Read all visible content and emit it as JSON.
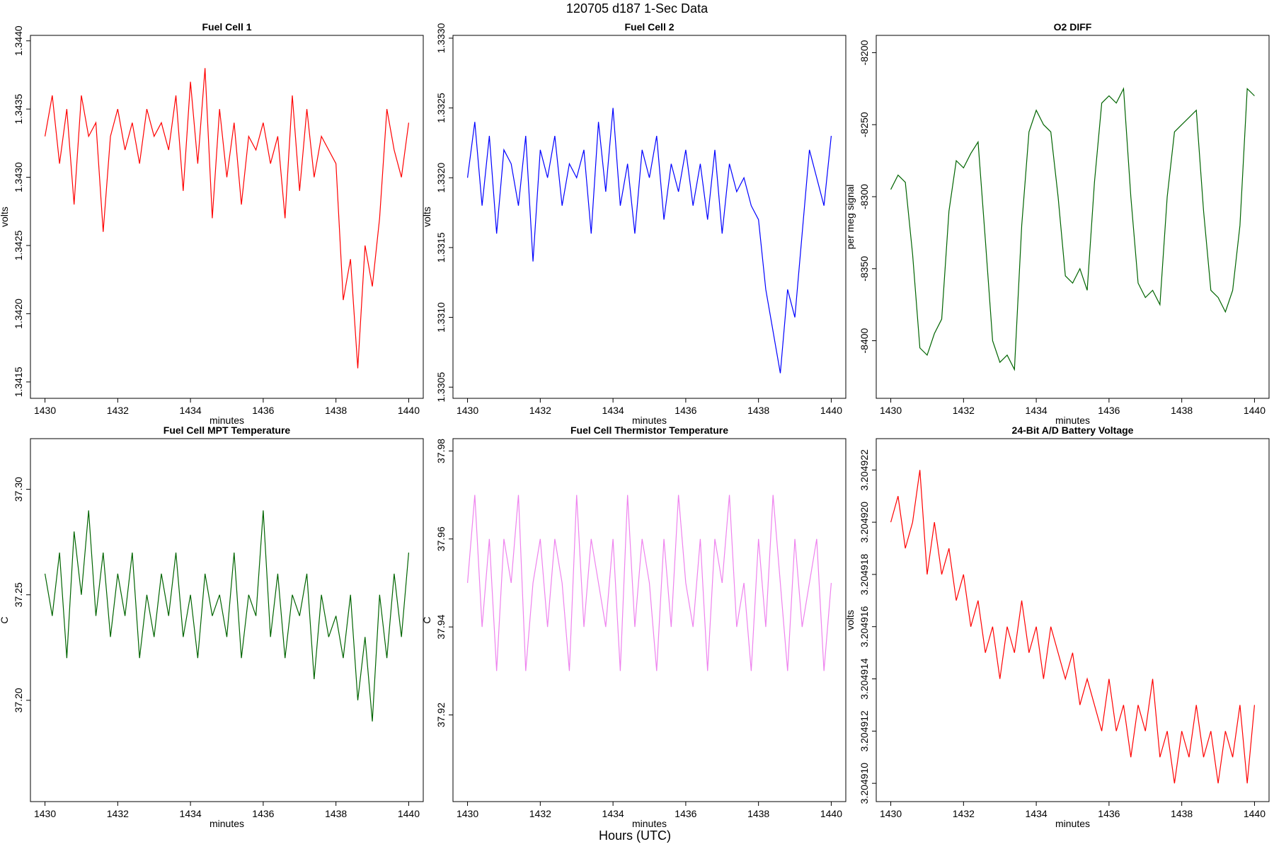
{
  "title": "120705   d187   1-Sec Data",
  "xlabel": "Hours (UTC)",
  "chart_data": [
    {
      "type": "line",
      "title": "Fuel Cell 1",
      "xlabel": "minutes",
      "ylabel": "volts",
      "color": "#ff0000",
      "x": [
        1430,
        1430.2,
        1430.4,
        1430.6,
        1430.8,
        1431,
        1431.2,
        1431.4,
        1431.6,
        1431.8,
        1432,
        1432.2,
        1432.4,
        1432.6,
        1432.8,
        1433,
        1433.2,
        1433.4,
        1433.6,
        1433.8,
        1434,
        1434.2,
        1434.4,
        1434.6,
        1434.8,
        1435,
        1435.2,
        1435.4,
        1435.6,
        1435.8,
        1436,
        1436.2,
        1436.4,
        1436.6,
        1436.8,
        1437,
        1437.2,
        1437.4,
        1437.6,
        1437.8,
        1438,
        1438.2,
        1438.4,
        1438.6,
        1438.8,
        1439,
        1439.2,
        1439.4,
        1439.6,
        1439.8,
        1440
      ],
      "values": [
        1.3433,
        1.3436,
        1.3431,
        1.3435,
        1.3428,
        1.3436,
        1.3433,
        1.3434,
        1.3426,
        1.3433,
        1.3435,
        1.3432,
        1.3434,
        1.3431,
        1.3435,
        1.3433,
        1.3434,
        1.3432,
        1.3436,
        1.3429,
        1.3437,
        1.3431,
        1.3438,
        1.3427,
        1.3435,
        1.343,
        1.3434,
        1.3428,
        1.3433,
        1.3432,
        1.3434,
        1.3431,
        1.3433,
        1.3427,
        1.3436,
        1.3429,
        1.3435,
        1.343,
        1.3433,
        1.3432,
        1.3431,
        1.3421,
        1.3424,
        1.3416,
        1.3425,
        1.3422,
        1.3427,
        1.3435,
        1.3432,
        1.343,
        1.3434
      ],
      "xlim": [
        1429.6,
        1440.4
      ],
      "xticks": [
        1430,
        1432,
        1434,
        1436,
        1438,
        1440
      ],
      "ylim": [
        1.34138,
        1.34404
      ],
      "yticks": [
        1.3415,
        {
          "value": 1.342,
          "label": "1.3420"
        },
        1.3425,
        {
          "value": 1.343,
          "label": "1.3430"
        },
        1.3435,
        {
          "value": 1.344,
          "label": "1.3440"
        }
      ]
    },
    {
      "type": "line",
      "title": "Fuel Cell 2",
      "xlabel": "minutes",
      "ylabel": "volts",
      "color": "#0000ff",
      "x": [
        1430,
        1430.2,
        1430.4,
        1430.6,
        1430.8,
        1431,
        1431.2,
        1431.4,
        1431.6,
        1431.8,
        1432,
        1432.2,
        1432.4,
        1432.6,
        1432.8,
        1433,
        1433.2,
        1433.4,
        1433.6,
        1433.8,
        1434,
        1434.2,
        1434.4,
        1434.6,
        1434.8,
        1435,
        1435.2,
        1435.4,
        1435.6,
        1435.8,
        1436,
        1436.2,
        1436.4,
        1436.6,
        1436.8,
        1437,
        1437.2,
        1437.4,
        1437.6,
        1437.8,
        1438,
        1438.2,
        1438.4,
        1438.6,
        1438.8,
        1439,
        1439.2,
        1439.4,
        1439.6,
        1439.8,
        1440
      ],
      "values": [
        1.332,
        1.3324,
        1.3318,
        1.3323,
        1.3316,
        1.3322,
        1.3321,
        1.3318,
        1.3323,
        1.3314,
        1.3322,
        1.332,
        1.3323,
        1.3318,
        1.3321,
        1.332,
        1.3322,
        1.3316,
        1.3324,
        1.3319,
        1.3325,
        1.3318,
        1.3321,
        1.3316,
        1.3322,
        1.332,
        1.3323,
        1.3317,
        1.3321,
        1.3319,
        1.3322,
        1.3318,
        1.3321,
        1.3317,
        1.3322,
        1.3316,
        1.3321,
        1.3319,
        1.332,
        1.3318,
        1.3317,
        1.3312,
        1.3309,
        1.3306,
        1.3312,
        1.331,
        1.3316,
        1.3322,
        1.332,
        1.3318,
        1.3323
      ],
      "xlim": [
        1429.6,
        1440.4
      ],
      "xticks": [
        1430,
        1432,
        1434,
        1436,
        1438,
        1440
      ],
      "ylim": [
        1.33042,
        1.33302
      ],
      "yticks": [
        1.3305,
        {
          "value": 1.331,
          "label": "1.3310"
        },
        1.3315,
        {
          "value": 1.332,
          "label": "1.3320"
        },
        1.3325,
        {
          "value": 1.333,
          "label": "1.3330"
        }
      ]
    },
    {
      "type": "line",
      "title": "O2 DIFF",
      "xlabel": "minutes",
      "ylabel": "per meg signal",
      "color": "#006400",
      "x": [
        1430,
        1430.2,
        1430.4,
        1430.6,
        1430.8,
        1431,
        1431.2,
        1431.4,
        1431.6,
        1431.8,
        1432,
        1432.2,
        1432.4,
        1432.6,
        1432.8,
        1433,
        1433.2,
        1433.4,
        1433.6,
        1433.8,
        1434,
        1434.2,
        1434.4,
        1434.6,
        1434.8,
        1435,
        1435.2,
        1435.4,
        1435.6,
        1435.8,
        1436,
        1436.2,
        1436.4,
        1436.6,
        1436.8,
        1437,
        1437.2,
        1437.4,
        1437.6,
        1437.8,
        1438,
        1438.2,
        1438.4,
        1438.6,
        1438.8,
        1439,
        1439.2,
        1439.4,
        1439.6,
        1439.8,
        1440
      ],
      "values": [
        -8295,
        -8285,
        -8290,
        -8340,
        -8405,
        -8410,
        -8395,
        -8385,
        -8310,
        -8275,
        -8280,
        -8270,
        -8262,
        -8330,
        -8400,
        -8415,
        -8410,
        -8420,
        -8320,
        -8255,
        -8240,
        -8250,
        -8255,
        -8300,
        -8355,
        -8360,
        -8350,
        -8365,
        -8290,
        -8235,
        -8230,
        -8235,
        -8225,
        -8300,
        -8360,
        -8370,
        -8365,
        -8375,
        -8300,
        -8255,
        -8250,
        -8245,
        -8240,
        -8310,
        -8365,
        -8370,
        -8380,
        -8365,
        -8320,
        -8225,
        -8230
      ],
      "xlim": [
        1429.6,
        1440.4
      ],
      "xticks": [
        1430,
        1432,
        1434,
        1436,
        1438,
        1440
      ],
      "ylim": [
        -8440,
        -8188
      ],
      "yticks": [
        -8400,
        -8350,
        -8300,
        -8250,
        -8200
      ]
    },
    {
      "type": "line",
      "title": "Fuel Cell MPT Temperature",
      "xlabel": "minutes",
      "ylabel": "C",
      "color": "#006400",
      "x": [
        1430,
        1430.2,
        1430.4,
        1430.6,
        1430.8,
        1431,
        1431.2,
        1431.4,
        1431.6,
        1431.8,
        1432,
        1432.2,
        1432.4,
        1432.6,
        1432.8,
        1433,
        1433.2,
        1433.4,
        1433.6,
        1433.8,
        1434,
        1434.2,
        1434.4,
        1434.6,
        1434.8,
        1435,
        1435.2,
        1435.4,
        1435.6,
        1435.8,
        1436,
        1436.2,
        1436.4,
        1436.6,
        1436.8,
        1437,
        1437.2,
        1437.4,
        1437.6,
        1437.8,
        1438,
        1438.2,
        1438.4,
        1438.6,
        1438.8,
        1439,
        1439.2,
        1439.4,
        1439.6,
        1439.8,
        1440
      ],
      "values": [
        37.26,
        37.24,
        37.27,
        37.22,
        37.28,
        37.25,
        37.29,
        37.24,
        37.27,
        37.23,
        37.26,
        37.24,
        37.27,
        37.22,
        37.25,
        37.23,
        37.26,
        37.24,
        37.27,
        37.23,
        37.25,
        37.22,
        37.26,
        37.24,
        37.25,
        37.23,
        37.27,
        37.22,
        37.25,
        37.24,
        37.29,
        37.23,
        37.26,
        37.22,
        37.25,
        37.24,
        37.26,
        37.21,
        37.25,
        37.23,
        37.24,
        37.22,
        37.25,
        37.2,
        37.23,
        37.19,
        37.25,
        37.22,
        37.26,
        37.23,
        37.27
      ],
      "xlim": [
        1429.6,
        1440.4
      ],
      "xticks": [
        1430,
        1432,
        1434,
        1436,
        1438,
        1440
      ],
      "ylim": [
        37.152,
        37.324
      ],
      "yticks": [
        {
          "value": 37.2,
          "label": "37.20"
        },
        37.25,
        {
          "value": 37.3,
          "label": "37.30"
        }
      ]
    },
    {
      "type": "line",
      "title": "Fuel Cell Thermistor Temperature",
      "xlabel": "minutes",
      "ylabel": "C",
      "color": "#ee82ee",
      "x": [
        1430,
        1430.2,
        1430.4,
        1430.6,
        1430.8,
        1431,
        1431.2,
        1431.4,
        1431.6,
        1431.8,
        1432,
        1432.2,
        1432.4,
        1432.6,
        1432.8,
        1433,
        1433.2,
        1433.4,
        1433.6,
        1433.8,
        1434,
        1434.2,
        1434.4,
        1434.6,
        1434.8,
        1435,
        1435.2,
        1435.4,
        1435.6,
        1435.8,
        1436,
        1436.2,
        1436.4,
        1436.6,
        1436.8,
        1437,
        1437.2,
        1437.4,
        1437.6,
        1437.8,
        1438,
        1438.2,
        1438.4,
        1438.6,
        1438.8,
        1439,
        1439.2,
        1439.4,
        1439.6,
        1439.8,
        1440
      ],
      "values": [
        37.95,
        37.97,
        37.94,
        37.96,
        37.93,
        37.96,
        37.95,
        37.97,
        37.93,
        37.95,
        37.96,
        37.94,
        37.96,
        37.95,
        37.93,
        37.97,
        37.94,
        37.96,
        37.95,
        37.94,
        37.96,
        37.93,
        37.97,
        37.94,
        37.96,
        37.95,
        37.93,
        37.96,
        37.94,
        37.97,
        37.95,
        37.94,
        37.96,
        37.93,
        37.96,
        37.95,
        37.97,
        37.94,
        37.95,
        37.93,
        37.96,
        37.94,
        37.97,
        37.95,
        37.93,
        37.96,
        37.94,
        37.95,
        37.96,
        37.93,
        37.95
      ],
      "xlim": [
        1429.6,
        1440.4
      ],
      "xticks": [
        1430,
        1432,
        1434,
        1436,
        1438,
        1440
      ],
      "ylim": [
        37.9003,
        37.9828
      ],
      "yticks": [
        37.92,
        37.94,
        37.96,
        37.98
      ]
    },
    {
      "type": "line",
      "title": "24-Bit A/D Battery Voltage",
      "xlabel": "minutes",
      "ylabel": "volts",
      "color": "#ff0000",
      "x": [
        1430,
        1430.2,
        1430.4,
        1430.6,
        1430.8,
        1431,
        1431.2,
        1431.4,
        1431.6,
        1431.8,
        1432,
        1432.2,
        1432.4,
        1432.6,
        1432.8,
        1433,
        1433.2,
        1433.4,
        1433.6,
        1433.8,
        1434,
        1434.2,
        1434.4,
        1434.6,
        1434.8,
        1435,
        1435.2,
        1435.4,
        1435.6,
        1435.8,
        1436,
        1436.2,
        1436.4,
        1436.6,
        1436.8,
        1437,
        1437.2,
        1437.4,
        1437.6,
        1437.8,
        1438,
        1438.2,
        1438.4,
        1438.6,
        1438.8,
        1439,
        1439.2,
        1439.4,
        1439.6,
        1439.8,
        1440
      ],
      "values": [
        3.20492,
        3.204921,
        3.204919,
        3.20492,
        3.204922,
        3.204918,
        3.20492,
        3.204918,
        3.204919,
        3.204917,
        3.204918,
        3.204916,
        3.204917,
        3.204915,
        3.204916,
        3.204914,
        3.204916,
        3.204915,
        3.204917,
        3.204915,
        3.204916,
        3.204914,
        3.204916,
        3.204915,
        3.204914,
        3.204915,
        3.204913,
        3.204914,
        3.204913,
        3.204912,
        3.204914,
        3.204912,
        3.204913,
        3.204911,
        3.204913,
        3.204912,
        3.204914,
        3.204911,
        3.204912,
        3.20491,
        3.204912,
        3.204911,
        3.204913,
        3.204911,
        3.204912,
        3.20491,
        3.204912,
        3.204911,
        3.204913,
        3.20491,
        3.204913
      ],
      "xlim": [
        1429.6,
        1440.4
      ],
      "xticks": [
        1430,
        1432,
        1434,
        1436,
        1438,
        1440
      ],
      "ylim": [
        3.2049093,
        3.2049232
      ],
      "yticks": [
        {
          "value": 3.20491,
          "label": "3.204910"
        },
        3.204912,
        3.204914,
        3.204916,
        3.204918,
        {
          "value": 3.20492,
          "label": "3.204920"
        },
        3.204922
      ]
    }
  ]
}
